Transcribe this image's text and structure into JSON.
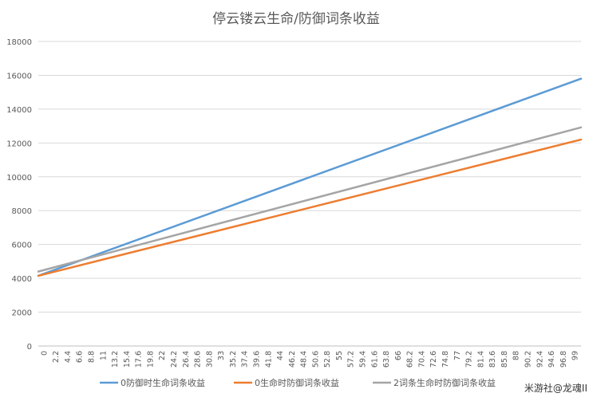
{
  "chart_data": {
    "type": "line",
    "title": "停云镂云生命/防御词条收益",
    "xlabel": "",
    "ylabel": "",
    "ylim": [
      0,
      18000
    ],
    "yticks": [
      0,
      2000,
      4000,
      6000,
      8000,
      10000,
      12000,
      14000,
      16000,
      18000
    ],
    "xlim": [
      0,
      100
    ],
    "x_tick_labels": [
      "0",
      "2.2",
      "4.4",
      "6.6",
      "8.8",
      "11",
      "13.2",
      "15.4",
      "17.6",
      "19.8",
      "22",
      "24.2",
      "26.4",
      "28.6",
      "30.8",
      "33",
      "35.2",
      "37.4",
      "39.6",
      "41.8",
      "44",
      "46.2",
      "48.4",
      "50.6",
      "52.8",
      "55",
      "57.2",
      "59.4",
      "61.6",
      "63.8",
      "66",
      "68.2",
      "70.4",
      "72.6",
      "74.8",
      "77",
      "79.2",
      "81.4",
      "83.6",
      "85.8",
      "88",
      "90.2",
      "92.4",
      "94.6",
      "96.8",
      "99"
    ],
    "grid": true,
    "legend_position": "bottom",
    "series": [
      {
        "name": "0防御时生命词条收益",
        "color": "#5b9bd5",
        "x": [
          0,
          100
        ],
        "values": [
          4150,
          15800
        ]
      },
      {
        "name": "0生命时防御词条收益",
        "color": "#ed7d31",
        "x": [
          0,
          100
        ],
        "values": [
          4150,
          12200
        ]
      },
      {
        "name": "2词条生命时防御词条收益",
        "color": "#a5a5a5",
        "x": [
          0,
          100
        ],
        "values": [
          4400,
          12920
        ]
      }
    ]
  },
  "watermark": "米游社@龙魂II"
}
